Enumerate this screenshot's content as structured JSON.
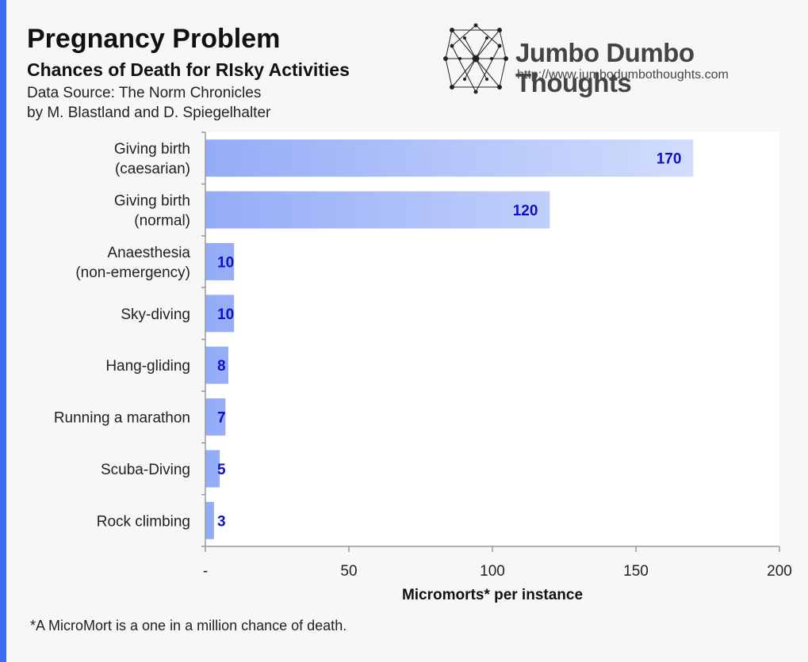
{
  "header": {
    "title": "Pregnancy Problem",
    "subtitle": "Chances of Death for RIsky Activities",
    "source_line1": "Data Source: The Norm Chronicles",
    "source_line2": "by M. Blastland and D. Spiegelhalter"
  },
  "logo": {
    "name": "Jumbo Dumbo Thoughts",
    "url": "http://www.jumbodumbothoughts.com"
  },
  "footnote": "*A MicroMort is a one in a million chance of death.",
  "colors": {
    "bar_start": "#94acf7",
    "bar_end": "#dde6fd",
    "value_label": "#1010c8",
    "accent": "#3b6cf2"
  },
  "chart_data": {
    "type": "bar",
    "orientation": "horizontal",
    "categories": [
      [
        "Giving birth",
        "(caesarian)"
      ],
      [
        "Giving birth",
        "(normal)"
      ],
      [
        "Anaesthesia",
        "(non-emergency)"
      ],
      [
        "Sky-diving"
      ],
      [
        "Hang-gliding"
      ],
      [
        "Running a marathon"
      ],
      [
        "Scuba-Diving"
      ],
      [
        "Rock climbing"
      ]
    ],
    "values": [
      170,
      120,
      10,
      10,
      8,
      7,
      5,
      3
    ],
    "value_labels": [
      "170",
      "120",
      "10",
      "10",
      "8",
      "7",
      "5",
      "3"
    ],
    "xlabel": "Micromorts* per instance",
    "xlim": [
      0,
      200
    ],
    "xticks": [
      0,
      50,
      100,
      150,
      200
    ],
    "xtick_labels": [
      "-",
      "50",
      "100",
      "150",
      "200"
    ],
    "grid": false
  }
}
